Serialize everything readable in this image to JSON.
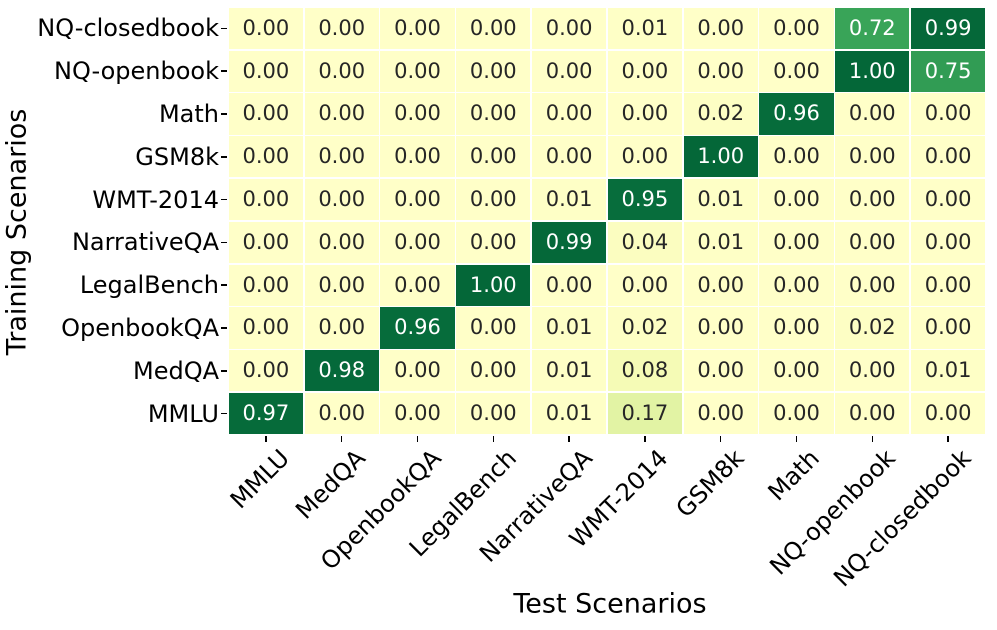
{
  "chart_data": {
    "type": "heatmap",
    "xlabel": "Test Scenarios",
    "ylabel": "Training Scenarios",
    "x_categories": [
      "MMLU",
      "MedQA",
      "OpenbookQA",
      "LegalBench",
      "NarrativeQA",
      "WMT-2014",
      "GSM8k",
      "Math",
      "NQ-openbook",
      "NQ-closedbook"
    ],
    "y_categories": [
      "NQ-closedbook",
      "NQ-openbook",
      "Math",
      "GSM8k",
      "WMT-2014",
      "NarrativeQA",
      "LegalBench",
      "OpenbookQA",
      "MedQA",
      "MMLU"
    ],
    "values": [
      [
        0.0,
        0.0,
        0.0,
        0.0,
        0.0,
        0.01,
        0.0,
        0.0,
        0.72,
        0.99
      ],
      [
        0.0,
        0.0,
        0.0,
        0.0,
        0.0,
        0.0,
        0.0,
        0.0,
        1.0,
        0.75
      ],
      [
        0.0,
        0.0,
        0.0,
        0.0,
        0.0,
        0.0,
        0.02,
        0.96,
        0.0,
        0.0
      ],
      [
        0.0,
        0.0,
        0.0,
        0.0,
        0.0,
        0.0,
        1.0,
        0.0,
        0.0,
        0.0
      ],
      [
        0.0,
        0.0,
        0.0,
        0.0,
        0.01,
        0.95,
        0.01,
        0.0,
        0.0,
        0.0
      ],
      [
        0.0,
        0.0,
        0.0,
        0.0,
        0.99,
        0.04,
        0.01,
        0.0,
        0.0,
        0.0
      ],
      [
        0.0,
        0.0,
        0.0,
        1.0,
        0.0,
        0.0,
        0.0,
        0.0,
        0.0,
        0.0
      ],
      [
        0.0,
        0.0,
        0.96,
        0.0,
        0.01,
        0.02,
        0.0,
        0.0,
        0.02,
        0.0
      ],
      [
        0.0,
        0.98,
        0.0,
        0.0,
        0.01,
        0.08,
        0.0,
        0.0,
        0.0,
        0.01
      ],
      [
        0.97,
        0.0,
        0.0,
        0.0,
        0.01,
        0.17,
        0.0,
        0.0,
        0.0,
        0.0
      ]
    ],
    "value_decimals": 2,
    "vmin": 0,
    "vmax": 1,
    "colormap_name": "YlGn",
    "colormap_stops": [
      [
        0.0,
        "#ffffc8"
      ],
      [
        0.05,
        "#fafdbe"
      ],
      [
        0.1,
        "#f2f9b1"
      ],
      [
        0.2,
        "#dbf09e"
      ],
      [
        0.35,
        "#addd8e"
      ],
      [
        0.5,
        "#78c679"
      ],
      [
        0.7,
        "#3ea95b"
      ],
      [
        0.9,
        "#0a7340"
      ],
      [
        1.0,
        "#046738"
      ]
    ],
    "gridline_color": "#ffffff",
    "cell_text_dark": "#262626",
    "cell_text_light": "#ffffff",
    "light_text_threshold": 0.45,
    "legend": "none",
    "grid": "white cell separators"
  }
}
